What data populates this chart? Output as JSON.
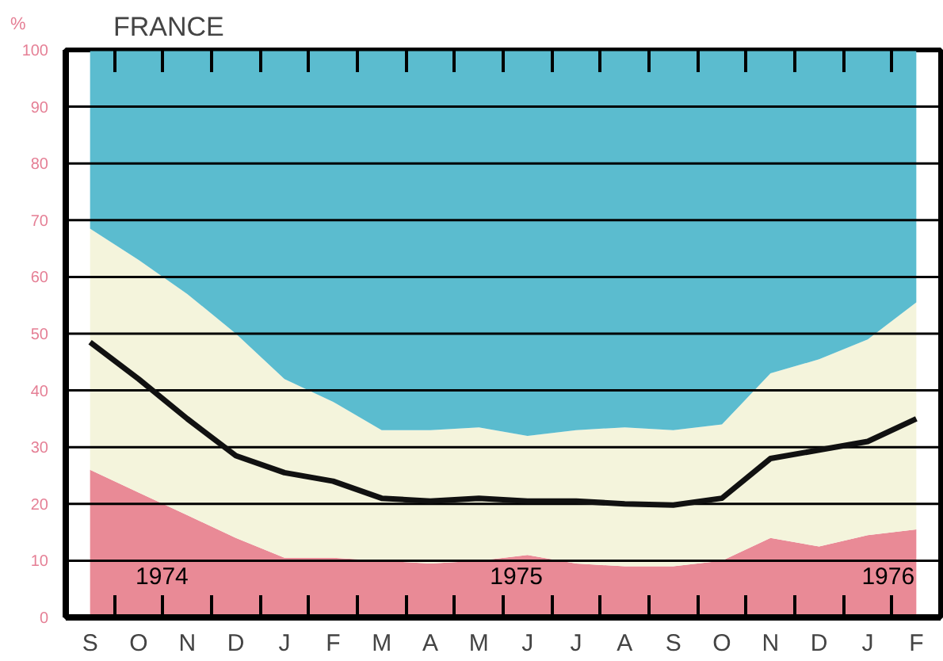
{
  "chart_data": {
    "type": "area",
    "title": "FRANCE",
    "ylabel": "%",
    "stacked": true,
    "categories": [
      "S",
      "O",
      "N",
      "D",
      "J",
      "F",
      "M",
      "A",
      "M",
      "J",
      "J",
      "A",
      "S",
      "O",
      "N",
      "D",
      "J",
      "F"
    ],
    "series": [
      {
        "color": "#e98a96",
        "values": [
          26,
          22,
          18,
          14,
          10.5,
          10.5,
          10,
          9.5,
          10,
          11,
          9.5,
          9,
          9,
          10,
          14,
          12.5,
          14.5,
          15.5
        ]
      },
      {
        "color": "#f4f4dc",
        "values": [
          42.5,
          41,
          39,
          36,
          31.5,
          27.5,
          23,
          23.5,
          23.5,
          21,
          23.5,
          24.5,
          24,
          24,
          29,
          33,
          34.5,
          40
        ]
      },
      {
        "color": "#5bbccf",
        "values": [
          31.5,
          37,
          43,
          50,
          58,
          62,
          67,
          67,
          66.5,
          68,
          67,
          66.5,
          67,
          66,
          57,
          54.5,
          51,
          44.5
        ]
      },
      {
        "type": "line",
        "color": "#111111",
        "values": [
          48.5,
          42,
          35,
          28.5,
          25.5,
          24,
          21,
          20.5,
          21,
          20.5,
          20.5,
          20,
          19.8,
          21,
          28,
          29.5,
          31,
          35
        ]
      }
    ],
    "ylim": [
      0,
      100
    ],
    "yticks": [
      0,
      10,
      20,
      30,
      40,
      50,
      60,
      70,
      80,
      90,
      100
    ],
    "grid": "y",
    "annotations": [
      "1974",
      "1975",
      "1976"
    ]
  }
}
